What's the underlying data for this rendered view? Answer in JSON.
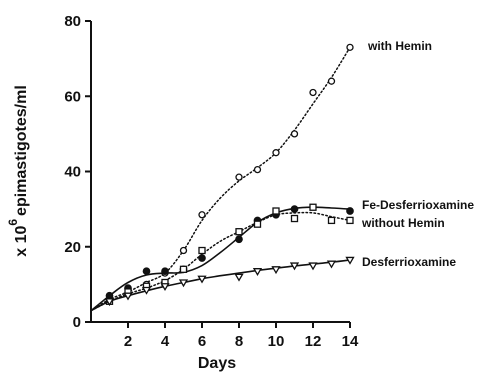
{
  "chart_data": {
    "type": "line",
    "xlabel": "Days",
    "ylabel": "x 10",
    "ylabel_exponent": "6",
    "ylabel_unit": "epimastigotes/ml",
    "xlim": [
      0,
      14
    ],
    "ylim": [
      0,
      80
    ],
    "xticks": [
      2,
      4,
      6,
      8,
      10,
      12,
      14
    ],
    "yticks": [
      0,
      20,
      40,
      60,
      80
    ],
    "grid": false,
    "legend": "none (direct labels)",
    "series": [
      {
        "name": "with Hemin",
        "marker": "circle-open",
        "line": "dotted",
        "points": [
          [
            1,
            6
          ],
          [
            2,
            7.5
          ],
          [
            3,
            10
          ],
          [
            4,
            13
          ],
          [
            5,
            19
          ],
          [
            6,
            28.5
          ],
          [
            8,
            38.5
          ],
          [
            9,
            40.5
          ],
          [
            10,
            45
          ],
          [
            11,
            50
          ],
          [
            12,
            61
          ],
          [
            13,
            64
          ],
          [
            14,
            73
          ]
        ],
        "curve": [
          [
            0,
            3
          ],
          [
            1,
            6
          ],
          [
            2,
            8
          ],
          [
            3,
            10.5
          ],
          [
            4,
            13
          ],
          [
            5,
            19
          ],
          [
            6,
            27
          ],
          [
            7,
            33
          ],
          [
            8,
            37.5
          ],
          [
            9,
            41
          ],
          [
            10,
            45
          ],
          [
            11,
            51
          ],
          [
            12,
            58
          ],
          [
            13,
            65
          ],
          [
            14,
            73
          ]
        ]
      },
      {
        "name": "Fe-Desferrioxamine",
        "marker": "circle-filled",
        "line": "solid",
        "points": [
          [
            1,
            7
          ],
          [
            2,
            9
          ],
          [
            3,
            13.5
          ],
          [
            4,
            13.5
          ],
          [
            5,
            14
          ],
          [
            6,
            17
          ],
          [
            8,
            22
          ],
          [
            9,
            27
          ],
          [
            10,
            28.5
          ],
          [
            11,
            30
          ],
          [
            14,
            29.5
          ]
        ],
        "curve": [
          [
            0,
            3
          ],
          [
            1,
            7
          ],
          [
            2,
            10.5
          ],
          [
            3,
            12.5
          ],
          [
            4,
            13
          ],
          [
            5,
            13.2
          ],
          [
            6,
            15
          ],
          [
            7,
            18.5
          ],
          [
            8,
            22.5
          ],
          [
            9,
            26.5
          ],
          [
            10,
            29
          ],
          [
            11,
            30.2
          ],
          [
            12,
            30.5
          ],
          [
            13,
            30.3
          ],
          [
            14,
            30
          ]
        ]
      },
      {
        "name": "without Hemin",
        "marker": "square-open",
        "line": "dotted",
        "points": [
          [
            1,
            5.5
          ],
          [
            2,
            8
          ],
          [
            3,
            9.5
          ],
          [
            4,
            10.5
          ],
          [
            5,
            14
          ],
          [
            6,
            19
          ],
          [
            8,
            24
          ],
          [
            9,
            26
          ],
          [
            10,
            29.5
          ],
          [
            11,
            27.5
          ],
          [
            12,
            30.5
          ],
          [
            13,
            27
          ],
          [
            14,
            27
          ]
        ],
        "curve": [
          [
            0,
            3
          ],
          [
            1,
            5.5
          ],
          [
            2,
            7.5
          ],
          [
            3,
            9
          ],
          [
            4,
            11
          ],
          [
            5,
            14
          ],
          [
            6,
            18
          ],
          [
            7,
            21.5
          ],
          [
            8,
            24
          ],
          [
            9,
            26.5
          ],
          [
            10,
            28.5
          ],
          [
            11,
            29
          ],
          [
            12,
            29
          ],
          [
            13,
            28
          ],
          [
            14,
            27
          ]
        ]
      },
      {
        "name": "Desferrioxamine",
        "marker": "triangle-down-open",
        "line": "solid",
        "points": [
          [
            1,
            5.5
          ],
          [
            2,
            7
          ],
          [
            3,
            8.5
          ],
          [
            4,
            9.5
          ],
          [
            5,
            10.5
          ],
          [
            6,
            11.5
          ],
          [
            8,
            12
          ],
          [
            9,
            13.5
          ],
          [
            10,
            14
          ],
          [
            11,
            15
          ],
          [
            12,
            15
          ],
          [
            13,
            15.5
          ],
          [
            14,
            16.5
          ]
        ],
        "curve": [
          [
            0,
            3
          ],
          [
            1,
            5.5
          ],
          [
            2,
            7
          ],
          [
            3,
            8.3
          ],
          [
            4,
            9.5
          ],
          [
            5,
            10.5
          ],
          [
            6,
            11.5
          ],
          [
            7,
            12.3
          ],
          [
            8,
            13
          ],
          [
            9,
            13.7
          ],
          [
            10,
            14.3
          ],
          [
            11,
            14.9
          ],
          [
            12,
            15.4
          ],
          [
            13,
            15.9
          ],
          [
            14,
            16.5
          ]
        ]
      }
    ]
  }
}
